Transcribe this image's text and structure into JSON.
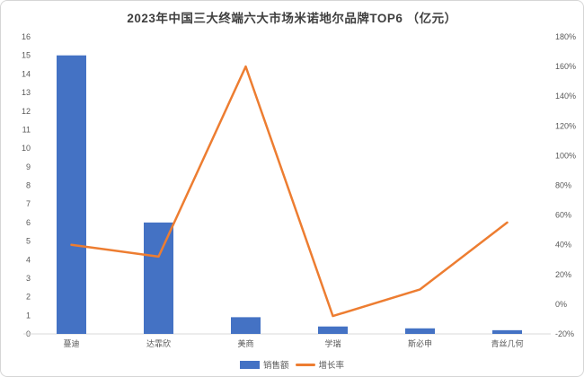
{
  "chart_data": {
    "type": "bar+line combo",
    "title": "2023年中国三大终端六大市场米诺地尔品牌TOP6 （亿元）",
    "categories": [
      "蔓迪",
      "达霏欣",
      "美商",
      "学瑞",
      "斯必申",
      "青丝几何"
    ],
    "series": [
      {
        "name": "销售额",
        "type": "bar",
        "axis": "left",
        "unit": "亿元",
        "values": [
          15,
          6,
          0.9,
          0.4,
          0.3,
          0.2
        ],
        "color": "#4472c4"
      },
      {
        "name": "增长率",
        "type": "line",
        "axis": "right",
        "unit": "%",
        "values": [
          40,
          32,
          160,
          -8,
          10,
          55
        ],
        "color": "#ed7d31"
      }
    ],
    "left_axis": {
      "min": 0,
      "max": 16,
      "step": 1,
      "tick_labels": [
        "0",
        "1",
        "2",
        "3",
        "4",
        "5",
        "6",
        "7",
        "8",
        "9",
        "10",
        "11",
        "12",
        "13",
        "14",
        "15",
        "16"
      ]
    },
    "right_axis": {
      "min": -20,
      "max": 180,
      "step": 20,
      "tick_labels": [
        "-20%",
        "0%",
        "20%",
        "40%",
        "60%",
        "80%",
        "100%",
        "120%",
        "140%",
        "160%",
        "180%"
      ]
    },
    "layout": {
      "gridlines": false,
      "legend_position": "bottom",
      "tick_color": "#595959",
      "axis_line_color": "#d9d9d9"
    }
  }
}
